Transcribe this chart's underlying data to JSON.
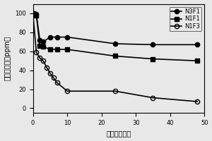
{
  "series": {
    "N3F1": {
      "x": [
        0,
        1,
        2,
        3,
        5,
        7,
        10,
        24,
        35,
        48
      ],
      "y": [
        100,
        99,
        72,
        70,
        75,
        75,
        75,
        68,
        67,
        67
      ],
      "marker": "o",
      "fillstyle": "full",
      "color": "black",
      "label": "N3F1"
    },
    "N1F1": {
      "x": [
        0,
        1,
        2,
        3,
        5,
        7,
        10,
        24,
        35,
        48
      ],
      "y": [
        100,
        98,
        66,
        65,
        62,
        62,
        62,
        55,
        52,
        50
      ],
      "marker": "s",
      "fillstyle": "full",
      "color": "black",
      "label": "N1F1"
    },
    "N1F3": {
      "x": [
        0,
        1,
        2,
        3,
        4,
        5,
        6,
        7,
        10,
        24,
        35,
        48
      ],
      "y": [
        100,
        59,
        53,
        50,
        43,
        37,
        32,
        27,
        18,
        18,
        11,
        7
      ],
      "marker": "o",
      "fillstyle": "none",
      "color": "black",
      "label": "N1F3"
    }
  },
  "xlabel": "时间（小时）",
  "ylabel": "金离子浓度（ppm）",
  "xlim": [
    0,
    50
  ],
  "ylim": [
    -5,
    110
  ],
  "xticks": [
    0,
    10,
    20,
    30,
    40,
    50
  ],
  "yticks": [
    0,
    20,
    40,
    60,
    80,
    100
  ],
  "legend_loc": "upper right",
  "background_color": "#e8e8e8",
  "linewidth": 1.2,
  "markersize": 4.5
}
